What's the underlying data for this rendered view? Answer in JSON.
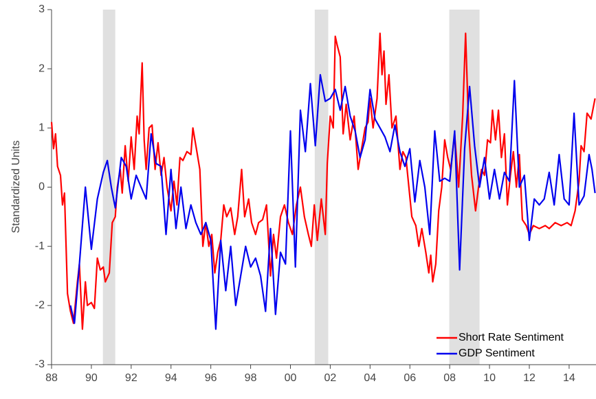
{
  "chart_data": {
    "type": "line",
    "y_label": "Standardized Units",
    "xlim": [
      1988,
      2015.35
    ],
    "ylim": [
      -3,
      3
    ],
    "xticks": [
      {
        "value": 1988,
        "label": "88"
      },
      {
        "value": 1990,
        "label": "90"
      },
      {
        "value": 1992,
        "label": "92"
      },
      {
        "value": 1994,
        "label": "94"
      },
      {
        "value": 1996,
        "label": "96"
      },
      {
        "value": 1998,
        "label": "98"
      },
      {
        "value": 2000,
        "label": "00"
      },
      {
        "value": 2002,
        "label": "02"
      },
      {
        "value": 2004,
        "label": "04"
      },
      {
        "value": 2006,
        "label": "06"
      },
      {
        "value": 2008,
        "label": "08"
      },
      {
        "value": 2010,
        "label": "10"
      },
      {
        "value": 2012,
        "label": "12"
      },
      {
        "value": 2014,
        "label": "14"
      }
    ],
    "yticks": [
      -3,
      -2,
      -1,
      0,
      1,
      2,
      3
    ],
    "shaded_regions": [
      [
        1990.58,
        1991.2
      ],
      [
        2001.22,
        2001.9
      ],
      [
        2007.98,
        2009.5
      ]
    ],
    "shade_color": "#e0e0e0",
    "legend": "lower right",
    "series": [
      {
        "name": "Short Rate Sentiment",
        "color": "#ff0000",
        "x": [
          1988.0,
          1988.1,
          1988.2,
          1988.3,
          1988.45,
          1988.55,
          1988.65,
          1988.8,
          1988.95,
          1989.1,
          1989.3,
          1989.4,
          1989.55,
          1989.7,
          1989.8,
          1990.0,
          1990.15,
          1990.3,
          1990.45,
          1990.6,
          1990.7,
          1990.9,
          1991.05,
          1991.2,
          1991.3,
          1991.45,
          1991.55,
          1991.7,
          1991.85,
          1992.0,
          1992.15,
          1992.3,
          1992.4,
          1992.55,
          1992.65,
          1992.75,
          1992.9,
          1993.05,
          1993.2,
          1993.35,
          1993.5,
          1993.65,
          1993.8,
          1994.0,
          1994.15,
          1994.3,
          1994.45,
          1994.6,
          1994.8,
          1995.0,
          1995.1,
          1995.3,
          1995.45,
          1995.6,
          1995.75,
          1995.9,
          1996.05,
          1996.2,
          1996.35,
          1996.5,
          1996.65,
          1996.8,
          1997.0,
          1997.2,
          1997.35,
          1997.55,
          1997.7,
          1997.9,
          1998.05,
          1998.25,
          1998.4,
          1998.6,
          1998.8,
          1999.0,
          1999.15,
          1999.3,
          1999.5,
          1999.7,
          1999.9,
          2000.1,
          2000.3,
          2000.5,
          2000.7,
          2000.9,
          2001.05,
          2001.2,
          2001.35,
          2001.55,
          2001.75,
          2001.85,
          2002.0,
          2002.15,
          2002.25,
          2002.35,
          2002.5,
          2002.65,
          2002.8,
          2003.0,
          2003.2,
          2003.4,
          2003.55,
          2003.75,
          2003.9,
          2004.0,
          2004.15,
          2004.35,
          2004.5,
          2004.6,
          2004.7,
          2004.8,
          2004.95,
          2005.1,
          2005.3,
          2005.5,
          2005.65,
          2005.8,
          2005.95,
          2006.1,
          2006.3,
          2006.45,
          2006.6,
          2006.8,
          2006.95,
          2007.05,
          2007.15,
          2007.3,
          2007.45,
          2007.6,
          2007.75,
          2007.9,
          2008.05,
          2008.25,
          2008.45,
          2008.65,
          2008.8,
          2008.95,
          2009.1,
          2009.3,
          2009.45,
          2009.6,
          2009.75,
          2009.9,
          2010.05,
          2010.15,
          2010.3,
          2010.45,
          2010.6,
          2010.75,
          2010.9,
          2011.05,
          2011.2,
          2011.35,
          2011.5,
          2011.65,
          2011.85,
          2012.0,
          2012.2,
          2012.5,
          2012.8,
          2013.0,
          2013.3,
          2013.6,
          2013.9,
          2014.1,
          2014.3,
          2014.5,
          2014.6,
          2014.75,
          2014.9,
          2015.1,
          2015.3
        ],
        "values": [
          1.1,
          0.65,
          0.9,
          0.35,
          0.2,
          -0.3,
          -0.1,
          -1.8,
          -2.1,
          -2.3,
          -1.6,
          -1.3,
          -2.4,
          -1.6,
          -2.0,
          -1.95,
          -2.05,
          -1.2,
          -1.4,
          -1.35,
          -1.6,
          -1.45,
          -0.6,
          -0.5,
          0.0,
          0.3,
          -0.1,
          0.7,
          0.1,
          0.85,
          0.3,
          1.2,
          0.9,
          2.1,
          0.8,
          0.3,
          1.0,
          1.05,
          0.3,
          0.75,
          0.2,
          0.5,
          0.0,
          -0.4,
          0.1,
          -0.3,
          0.5,
          0.45,
          0.6,
          0.55,
          1.0,
          0.6,
          0.3,
          -1.0,
          -0.6,
          -1.0,
          -0.8,
          -1.45,
          -1.1,
          -0.9,
          -0.3,
          -0.5,
          -0.35,
          -0.8,
          -0.5,
          0.3,
          -0.5,
          -0.2,
          -0.6,
          -0.8,
          -0.6,
          -0.55,
          -0.3,
          -1.5,
          -0.8,
          -1.2,
          -0.5,
          -0.3,
          -0.6,
          -0.8,
          -0.3,
          0.0,
          -0.5,
          -0.8,
          -1.0,
          -0.3,
          -0.9,
          -0.2,
          -0.8,
          0.4,
          1.2,
          1.0,
          2.55,
          2.4,
          2.2,
          0.9,
          1.4,
          0.8,
          1.2,
          0.3,
          0.6,
          1.0,
          1.1,
          1.5,
          1.0,
          1.5,
          2.6,
          1.9,
          2.3,
          1.4,
          1.9,
          1.0,
          1.2,
          0.3,
          0.6,
          0.5,
          0.0,
          -0.5,
          -0.65,
          -1.0,
          -0.7,
          -1.1,
          -1.45,
          -1.15,
          -1.6,
          -1.3,
          -0.4,
          0.0,
          0.8,
          0.5,
          0.3,
          0.9,
          0.0,
          1.2,
          2.6,
          1.0,
          0.2,
          -0.4,
          0.0,
          0.3,
          0.2,
          0.8,
          0.75,
          1.3,
          0.8,
          1.3,
          0.5,
          0.9,
          -0.3,
          0.2,
          0.6,
          0.0,
          0.55,
          -0.55,
          -0.65,
          -0.8,
          -0.65,
          -0.7,
          -0.65,
          -0.7,
          -0.6,
          -0.65,
          -0.6,
          -0.65,
          -0.4,
          0.1,
          0.7,
          0.6,
          1.25,
          1.15,
          1.5
        ]
      },
      {
        "name": "GDP Sentiment",
        "color": "#0000ee",
        "x": [
          1988.95,
          1989.15,
          1989.4,
          1989.7,
          1990.0,
          1990.3,
          1990.6,
          1990.8,
          1991.0,
          1991.2,
          1991.5,
          1991.75,
          1992.0,
          1992.25,
          1992.5,
          1992.75,
          1993.0,
          1993.25,
          1993.5,
          1993.75,
          1994.0,
          1994.25,
          1994.5,
          1994.75,
          1995.0,
          1995.25,
          1995.5,
          1995.75,
          1996.0,
          1996.25,
          1996.5,
          1996.75,
          1997.0,
          1997.25,
          1997.5,
          1997.75,
          1998.0,
          1998.25,
          1998.5,
          1998.75,
          1999.0,
          1999.25,
          1999.5,
          1999.75,
          2000.0,
          2000.25,
          2000.5,
          2000.75,
          2001.0,
          2001.25,
          2001.5,
          2001.75,
          2002.0,
          2002.25,
          2002.5,
          2002.75,
          2003.0,
          2003.25,
          2003.5,
          2003.75,
          2004.0,
          2004.25,
          2004.5,
          2004.75,
          2005.0,
          2005.25,
          2005.5,
          2005.75,
          2006.0,
          2006.25,
          2006.5,
          2006.75,
          2007.0,
          2007.25,
          2007.5,
          2007.75,
          2008.0,
          2008.25,
          2008.5,
          2008.75,
          2009.0,
          2009.25,
          2009.5,
          2009.75,
          2010.0,
          2010.25,
          2010.5,
          2010.75,
          2011.0,
          2011.25,
          2011.5,
          2011.75,
          2012.0,
          2012.25,
          2012.5,
          2012.75,
          2013.0,
          2013.25,
          2013.5,
          2013.75,
          2014.0,
          2014.25,
          2014.5,
          2014.75,
          2015.0,
          2015.15,
          2015.3
        ],
        "values": [
          -2.0,
          -2.3,
          -1.3,
          0.0,
          -1.05,
          -0.2,
          0.25,
          0.45,
          0.0,
          -0.35,
          0.5,
          0.35,
          -0.2,
          0.2,
          0.0,
          -0.2,
          0.9,
          0.4,
          0.35,
          -0.8,
          0.3,
          -0.7,
          0.0,
          -0.7,
          -0.3,
          -0.6,
          -0.8,
          -0.6,
          -0.9,
          -2.4,
          -0.9,
          -1.75,
          -1.0,
          -2.0,
          -1.5,
          -1.0,
          -1.35,
          -1.2,
          -1.5,
          -2.1,
          -0.7,
          -2.15,
          -1.1,
          -1.3,
          0.95,
          -1.35,
          1.3,
          0.6,
          1.75,
          0.7,
          1.9,
          1.45,
          1.5,
          1.65,
          1.3,
          1.7,
          1.2,
          0.95,
          0.5,
          0.8,
          1.65,
          1.15,
          1.0,
          0.85,
          0.6,
          1.05,
          0.6,
          0.35,
          0.65,
          -0.25,
          0.45,
          0.0,
          -0.8,
          0.95,
          0.1,
          0.15,
          0.1,
          0.95,
          -1.4,
          0.65,
          1.7,
          0.7,
          0.0,
          0.5,
          -0.2,
          0.3,
          -0.2,
          0.25,
          0.1,
          1.8,
          0.0,
          0.2,
          -0.9,
          -0.2,
          -0.3,
          -0.2,
          0.25,
          -0.3,
          0.55,
          -0.2,
          -0.3,
          1.25,
          -0.3,
          -0.15,
          0.55,
          0.3,
          -0.1
        ]
      }
    ]
  }
}
